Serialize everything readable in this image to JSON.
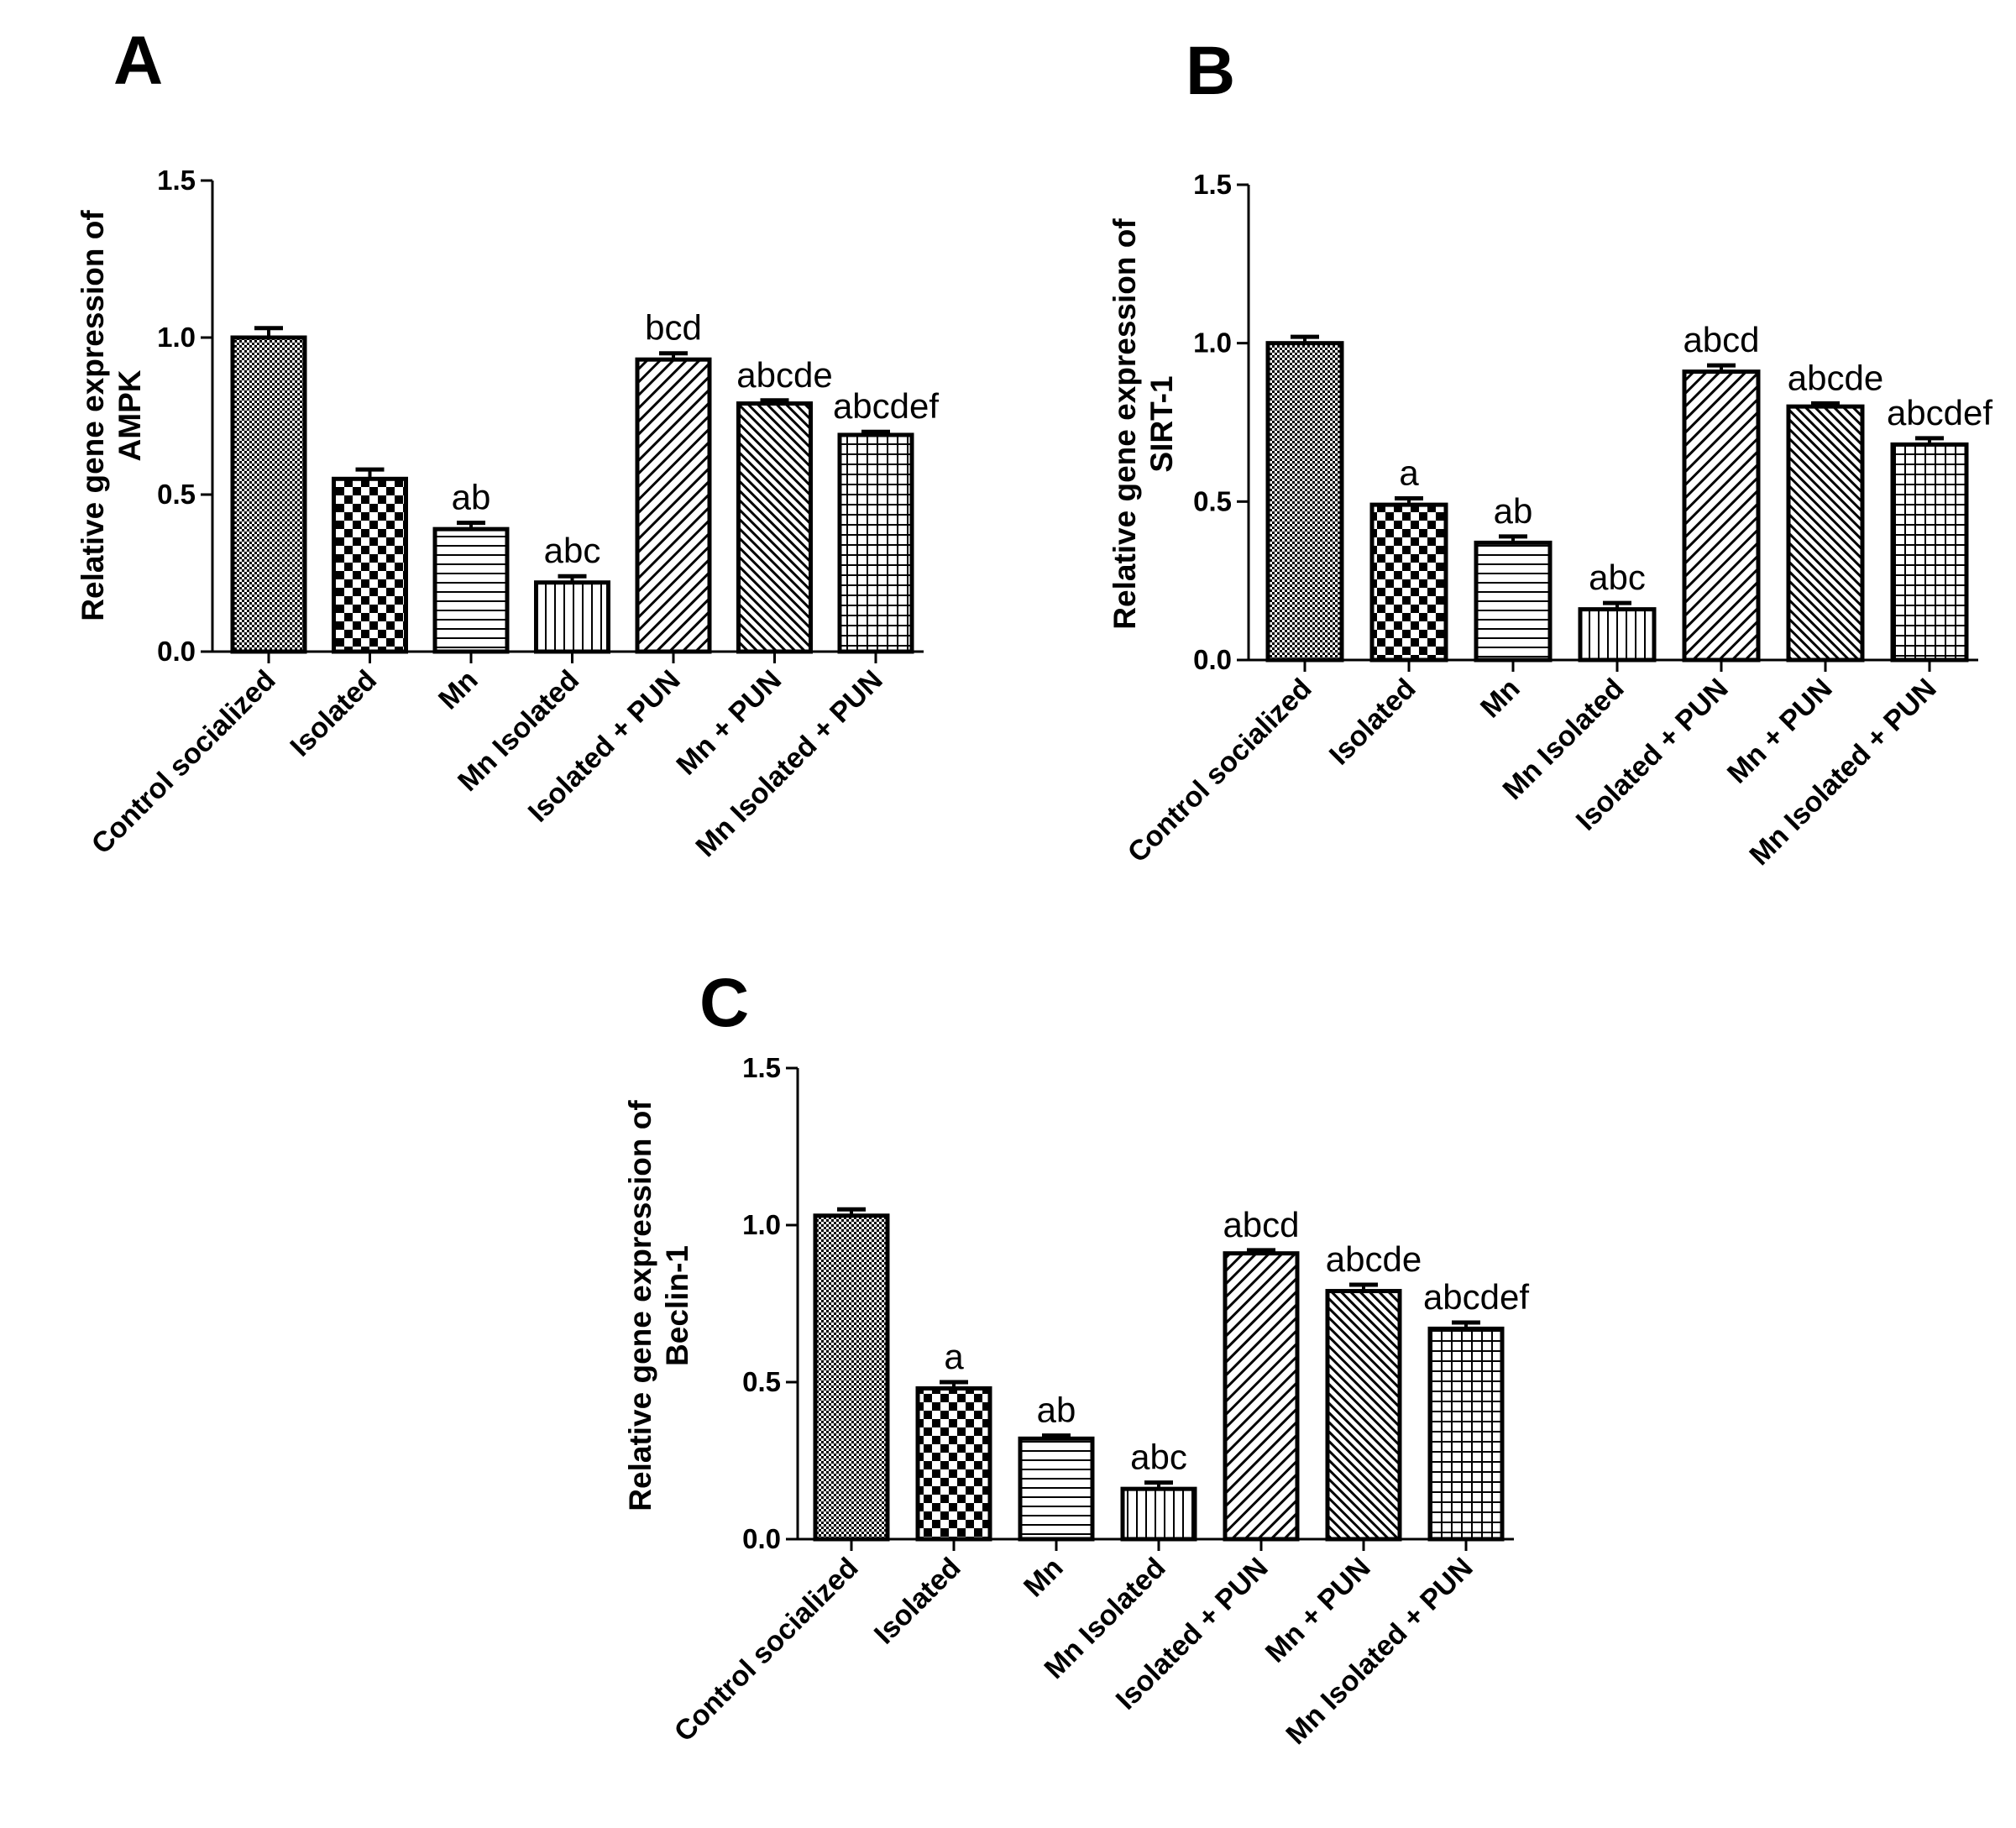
{
  "figure": {
    "panels": [
      "A",
      "B",
      "C"
    ]
  },
  "chart_data": [
    {
      "type": "bar",
      "panel_label": "A",
      "ylabel_line1": "Relative gene expression of",
      "ylabel_line2": "AMPK",
      "xlabel": "",
      "ylim": [
        0,
        1.5
      ],
      "yticks": [
        "0.0",
        "0.5",
        "1.0",
        "1.5"
      ],
      "categories": [
        "Control socialized",
        "Isolated",
        "Mn",
        "Mn Isolated",
        "Isolated + PUN",
        "Mn + PUN",
        "Mn Isolated + PUN"
      ],
      "values": [
        1.0,
        0.55,
        0.39,
        0.22,
        0.93,
        0.79,
        0.69
      ],
      "errors": [
        0.03,
        0.03,
        0.02,
        0.02,
        0.02,
        0.01,
        0.01
      ],
      "significance": [
        "",
        "",
        "ab",
        "abc",
        "bcd",
        "abcde",
        "abcdef"
      ],
      "patterns": [
        "dense",
        "checker",
        "hlines",
        "vlines",
        "diag",
        "diag-dense",
        "grid"
      ]
    },
    {
      "type": "bar",
      "panel_label": "B",
      "ylabel_line1": "Relative gene expression of",
      "ylabel_line2": "SIRT-1",
      "xlabel": "",
      "ylim": [
        0,
        1.5
      ],
      "yticks": [
        "0.0",
        "0.5",
        "1.0",
        "1.5"
      ],
      "categories": [
        "Control socialized",
        "Isolated",
        "Mn",
        "Mn Isolated",
        "Isolated + PUN",
        "Mn + PUN",
        "Mn Isolated + PUN"
      ],
      "values": [
        1.0,
        0.49,
        0.37,
        0.16,
        0.91,
        0.8,
        0.68
      ],
      "errors": [
        0.02,
        0.02,
        0.02,
        0.02,
        0.02,
        0.01,
        0.02
      ],
      "significance": [
        "",
        "a",
        "ab",
        "abc",
        "abcd",
        "abcde",
        "abcdef"
      ],
      "patterns": [
        "dense",
        "checker",
        "hlines",
        "vlines",
        "diag",
        "diag-dense",
        "grid"
      ]
    },
    {
      "type": "bar",
      "panel_label": "C",
      "ylabel_line1": "Relative gene expression of",
      "ylabel_line2": "Beclin-1",
      "xlabel": "",
      "ylim": [
        0,
        1.5
      ],
      "yticks": [
        "0.0",
        "0.5",
        "1.0",
        "1.5"
      ],
      "categories": [
        "Control socialized",
        "Isolated",
        "Mn",
        "Mn Isolated",
        "Isolated + PUN",
        "Mn + PUN",
        "Mn Isolated + PUN"
      ],
      "values": [
        1.03,
        0.48,
        0.32,
        0.16,
        0.91,
        0.79,
        0.67
      ],
      "errors": [
        0.02,
        0.02,
        0.01,
        0.02,
        0.01,
        0.02,
        0.02
      ],
      "significance": [
        "",
        "a",
        "ab",
        "abc",
        "abcd",
        "abcde",
        "abcdef"
      ],
      "patterns": [
        "dense",
        "checker",
        "hlines",
        "vlines",
        "diag",
        "diag-dense",
        "grid"
      ]
    }
  ]
}
